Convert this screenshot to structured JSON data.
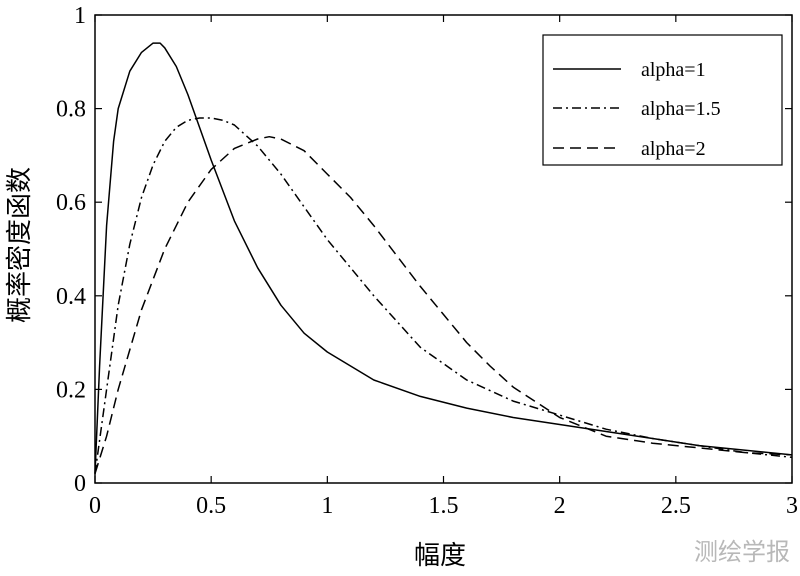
{
  "chart_data": {
    "type": "line",
    "title": "",
    "xlabel": "幅度",
    "ylabel": "概率密度函数",
    "xlim": [
      0,
      3
    ],
    "ylim": [
      0,
      1
    ],
    "x_ticks": [
      "0",
      "0.5",
      "1",
      "1.5",
      "2",
      "2.5",
      "3"
    ],
    "y_ticks": [
      "0",
      "0.2",
      "0.4",
      "0.6",
      "0.8",
      "1"
    ],
    "grid": false,
    "legend_position": "top-right",
    "series": [
      {
        "name": "alpha=1",
        "style": "solid",
        "x": [
          0,
          0.02,
          0.05,
          0.08,
          0.1,
          0.15,
          0.2,
          0.25,
          0.28,
          0.3,
          0.35,
          0.4,
          0.5,
          0.6,
          0.7,
          0.8,
          0.9,
          1.0,
          1.2,
          1.4,
          1.6,
          1.8,
          2.0,
          2.2,
          2.4,
          2.6,
          2.8,
          3.0
        ],
        "y": [
          0.02,
          0.25,
          0.55,
          0.73,
          0.8,
          0.88,
          0.92,
          0.94,
          0.94,
          0.93,
          0.89,
          0.83,
          0.69,
          0.56,
          0.46,
          0.38,
          0.32,
          0.28,
          0.22,
          0.185,
          0.16,
          0.14,
          0.125,
          0.11,
          0.095,
          0.08,
          0.07,
          0.06
        ]
      },
      {
        "name": "alpha=1.5",
        "style": "dashdot",
        "x": [
          0,
          0.05,
          0.1,
          0.15,
          0.2,
          0.25,
          0.3,
          0.35,
          0.4,
          0.45,
          0.5,
          0.55,
          0.6,
          0.7,
          0.8,
          0.9,
          1.0,
          1.2,
          1.4,
          1.6,
          1.8,
          2.0,
          2.2,
          2.4,
          2.6,
          2.8,
          3.0
        ],
        "y": [
          0.02,
          0.2,
          0.38,
          0.51,
          0.61,
          0.68,
          0.73,
          0.76,
          0.775,
          0.78,
          0.78,
          0.775,
          0.765,
          0.72,
          0.66,
          0.59,
          0.52,
          0.4,
          0.29,
          0.22,
          0.175,
          0.145,
          0.115,
          0.095,
          0.08,
          0.065,
          0.055
        ]
      },
      {
        "name": "alpha=2",
        "style": "dashed",
        "x": [
          0,
          0.05,
          0.1,
          0.2,
          0.3,
          0.4,
          0.5,
          0.6,
          0.7,
          0.75,
          0.8,
          0.9,
          1.0,
          1.1,
          1.2,
          1.3,
          1.4,
          1.5,
          1.6,
          1.7,
          1.8,
          2.0,
          2.2,
          2.4,
          2.6,
          2.8,
          3.0
        ],
        "y": [
          0.02,
          0.1,
          0.2,
          0.37,
          0.5,
          0.6,
          0.67,
          0.715,
          0.735,
          0.74,
          0.735,
          0.71,
          0.66,
          0.61,
          0.55,
          0.485,
          0.42,
          0.36,
          0.3,
          0.25,
          0.205,
          0.14,
          0.1,
          0.085,
          0.075,
          0.065,
          0.06
        ]
      }
    ]
  },
  "watermark": "测绘学报"
}
